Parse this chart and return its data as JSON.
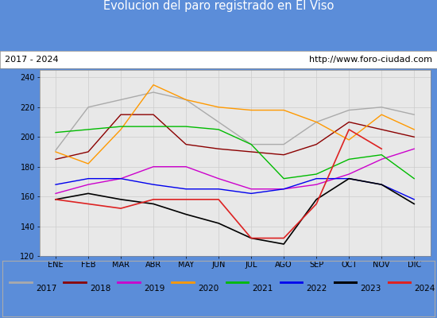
{
  "title": "Evolucion del paro registrado en El Viso",
  "subtitle_left": "2017 - 2024",
  "subtitle_right": "http://www.foro-ciudad.com",
  "title_bg_color": "#5b8dd9",
  "title_text_color": "#ffffff",
  "months": [
    "ENE",
    "FEB",
    "MAR",
    "ABR",
    "MAY",
    "JUN",
    "JUL",
    "AGO",
    "SEP",
    "OCT",
    "NOV",
    "DIC"
  ],
  "ylim": [
    120,
    245
  ],
  "yticks": [
    120,
    140,
    160,
    180,
    200,
    220,
    240
  ],
  "series": {
    "2017": {
      "color": "#aaaaaa",
      "linewidth": 1.0,
      "values": [
        191,
        220,
        225,
        230,
        225,
        210,
        195,
        195,
        210,
        218,
        220,
        215
      ]
    },
    "2018": {
      "color": "#8b0000",
      "linewidth": 1.0,
      "values": [
        185,
        190,
        215,
        215,
        195,
        192,
        190,
        188,
        195,
        210,
        205,
        200
      ]
    },
    "2019": {
      "color": "#cc00cc",
      "linewidth": 1.0,
      "values": [
        162,
        168,
        172,
        180,
        180,
        172,
        165,
        165,
        168,
        175,
        185,
        192
      ]
    },
    "2020": {
      "color": "#ff9900",
      "linewidth": 1.0,
      "values": [
        190,
        182,
        205,
        235,
        225,
        220,
        218,
        218,
        210,
        198,
        215,
        205
      ]
    },
    "2021": {
      "color": "#00bb00",
      "linewidth": 1.0,
      "values": [
        203,
        205,
        207,
        207,
        207,
        205,
        195,
        172,
        175,
        185,
        188,
        172
      ]
    },
    "2022": {
      "color": "#0000ee",
      "linewidth": 1.0,
      "values": [
        168,
        172,
        172,
        168,
        165,
        165,
        162,
        165,
        172,
        172,
        168,
        158
      ]
    },
    "2023": {
      "color": "#000000",
      "linewidth": 1.2,
      "values": [
        158,
        162,
        158,
        155,
        148,
        142,
        132,
        128,
        158,
        172,
        168,
        155
      ]
    },
    "2024": {
      "color": "#dd2222",
      "linewidth": 1.2,
      "values": [
        158,
        155,
        152,
        158,
        158,
        158,
        132,
        132,
        155,
        205,
        192,
        null
      ]
    }
  },
  "legend_order": [
    "2017",
    "2018",
    "2019",
    "2020",
    "2021",
    "2022",
    "2023",
    "2024"
  ]
}
